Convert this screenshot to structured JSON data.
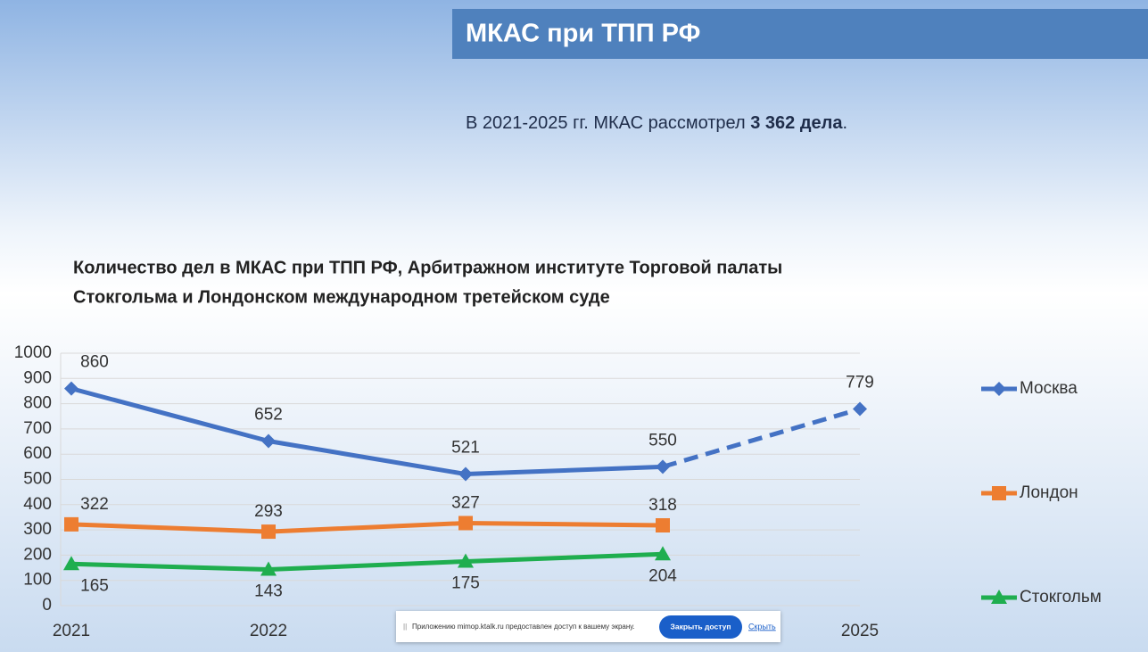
{
  "header": {
    "title": "МКАС при ТПП РФ"
  },
  "summary": {
    "text": "В 2021-2025 гг. МКАС рассмотрел",
    "bold": "3 362 дела",
    "end": "."
  },
  "chart_data": {
    "type": "line",
    "title": [
      "Количество дел в МКАС при ТПП РФ,  Арбитражном институте Торговой палаты",
      "Стокгольма  и Лондонском международном третейском суде"
    ],
    "categories": [
      "2021",
      "2022",
      null,
      null,
      "2025"
    ],
    "series": [
      {
        "name": "Москва",
        "color": "#4472c4",
        "marker": "diamond",
        "dash_from_index": 3,
        "values": [
          860,
          652,
          521,
          550,
          779
        ]
      },
      {
        "name": "Лондон",
        "color": "#ed7d31",
        "marker": "square",
        "values": [
          322,
          293,
          327,
          318,
          null
        ]
      },
      {
        "name": "Стокгольм",
        "color": "#1fae4f",
        "marker": "triangle",
        "values": [
          165,
          143,
          175,
          204,
          null
        ]
      }
    ],
    "ylim": [
      0,
      1000
    ],
    "yticks": [
      0,
      100,
      200,
      300,
      400,
      500,
      600,
      700,
      800,
      900,
      1000
    ],
    "grid": true,
    "legend": "right"
  },
  "notice": {
    "text": "Приложению mimop.ktalk.ru предоставлен доступ к вашему экрану.",
    "button": "Закрыть доступ",
    "link": "Скрыть"
  }
}
